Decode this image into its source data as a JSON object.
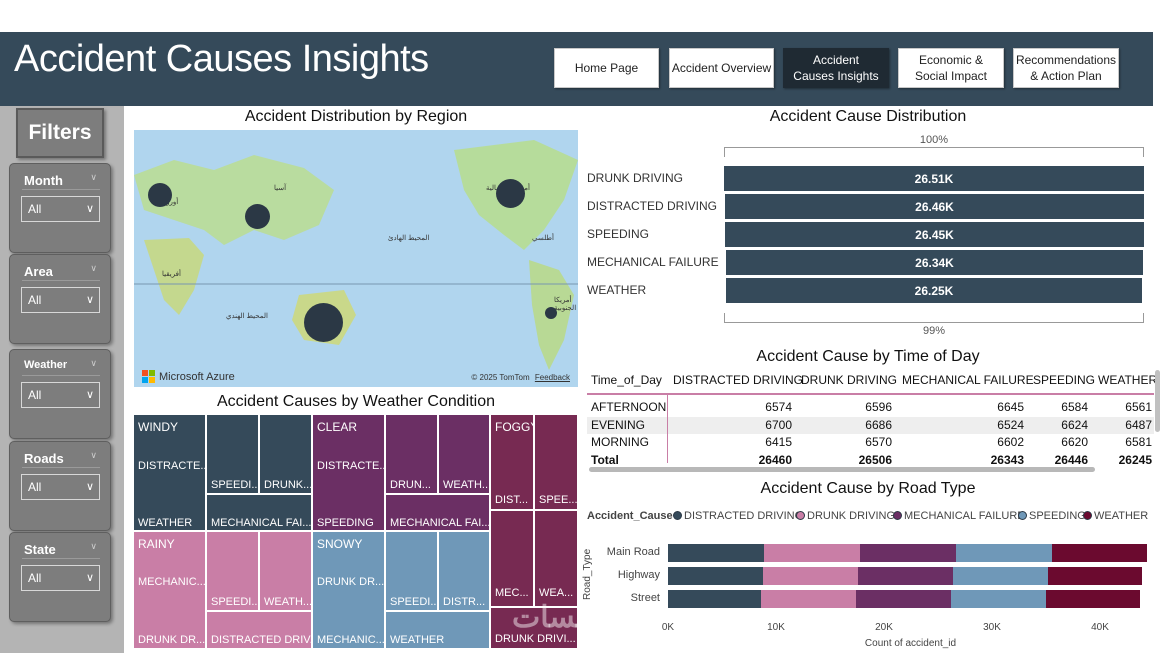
{
  "header": {
    "title": "Accident Causes Insights",
    "nav": [
      {
        "label": "Home Page",
        "active": false
      },
      {
        "label": "Accident Overview",
        "active": false
      },
      {
        "label": "Accident Causes Insights",
        "active": true
      },
      {
        "label": "Economic & Social Impact",
        "active": false
      },
      {
        "label": "Recommendations & Action Plan",
        "active": false
      }
    ]
  },
  "filters": {
    "title": "Filters",
    "slicers": [
      {
        "label": "Month",
        "value": "All"
      },
      {
        "label": "Area",
        "value": "All"
      },
      {
        "label": "Weather",
        "value": "All"
      },
      {
        "label": "Roads",
        "value": "All"
      },
      {
        "label": "State",
        "value": "All"
      }
    ]
  },
  "map": {
    "title": "Accident Distribution by Region",
    "attribution": "Microsoft Azure",
    "copyright": "© 2025 TomTom",
    "feedback": "Feedback",
    "labels": [
      "أوروبا",
      "آسيا",
      "أمريكا الشمالية",
      "المحيط الهادئ",
      "أفريقيا",
      "المحيط الهندي",
      "أمريكا الجنوبية",
      "أطلسي"
    ]
  },
  "cause_distribution": {
    "title": "Accident Cause Distribution",
    "top_pct": "100%",
    "bottom_pct": "99%",
    "bars": [
      {
        "label": "DRUNK DRIVING",
        "value": "26.51K",
        "num": 26.51
      },
      {
        "label": "DISTRACTED DRIVING",
        "value": "26.46K",
        "num": 26.46
      },
      {
        "label": "SPEEDING",
        "value": "26.45K",
        "num": 26.45
      },
      {
        "label": "MECHANICAL FAILURE",
        "value": "26.34K",
        "num": 26.34
      },
      {
        "label": "WEATHER",
        "value": "26.25K",
        "num": 26.25
      }
    ]
  },
  "time_of_day": {
    "title": "Accident Cause by Time of Day",
    "columns": [
      "Time_of_Day",
      "DISTRACTED DRIVING",
      "DRUNK DRIVING",
      "MECHANICAL FAILURE",
      "SPEEDING",
      "WEATHER"
    ],
    "rows": [
      [
        "AFTERNOON",
        "6574",
        "6596",
        "6645",
        "6584",
        "6561"
      ],
      [
        "EVENING",
        "6700",
        "6686",
        "6524",
        "6624",
        "6487"
      ],
      [
        "MORNING",
        "6415",
        "6570",
        "6602",
        "6620",
        "6581"
      ]
    ],
    "total": [
      "Total",
      "26460",
      "26506",
      "26343",
      "26446",
      "26245"
    ]
  },
  "weather_treemap": {
    "title": "Accident Causes by Weather Condition",
    "groups": [
      {
        "name": "WINDY",
        "color": "#354a5a",
        "cells": [
          "DISTRACTE...",
          "SPEEDI...",
          "DRUNK...",
          "WEATHER",
          "MECHANICAL FAI..."
        ]
      },
      {
        "name": "CLEAR",
        "color": "#6b2f64",
        "cells": [
          "DISTRACTE...",
          "DRUN...",
          "WEATH...",
          "SPEEDING",
          "MECHANICAL FAI..."
        ]
      },
      {
        "name": "FOGGY",
        "color": "#772a52",
        "cells": [
          "DIST...",
          "SPEE...",
          "MEC...",
          "WEA...",
          "DRUNK DRIVI..."
        ]
      },
      {
        "name": "RAINY",
        "color": "#c97ea6",
        "cells": [
          "MECHANIC...",
          "SPEEDI...",
          "WEATH...",
          "DRUNK DR...",
          "DISTRACTED DRIV..."
        ]
      },
      {
        "name": "SNOWY",
        "color": "#6f98b8",
        "cells": [
          "DRUNK DR...",
          "SPEEDI...",
          "DISTR...",
          "MECHANIC...",
          "WEATHER"
        ]
      }
    ]
  },
  "road_type": {
    "title": "Accident Cause by Road Type",
    "legend_title": "Accident_Cause",
    "y_axis_title": "Road_Type",
    "x_axis_title": "Count of accident_id",
    "x_ticks": [
      "0K",
      "10K",
      "20K",
      "30K",
      "40K"
    ],
    "xlim": [
      0,
      45000
    ],
    "series": [
      {
        "name": "DISTRACTED DRIVING",
        "color": "#354a5a"
      },
      {
        "name": "DRUNK DRIVING",
        "color": "#c97ea6"
      },
      {
        "name": "MECHANICAL FAILURE",
        "color": "#6b2f64"
      },
      {
        "name": "SPEEDING",
        "color": "#6f98b8"
      },
      {
        "name": "WEATHER",
        "color": "#6b0a2f"
      }
    ],
    "rows": [
      {
        "label": "Main Road",
        "values": [
          8900,
          8900,
          8900,
          8900,
          8800
        ]
      },
      {
        "label": "Highway",
        "values": [
          8800,
          8800,
          8800,
          8800,
          8700
        ]
      },
      {
        "label": "Street",
        "values": [
          8600,
          8800,
          8800,
          8800,
          8700
        ]
      }
    ]
  },
  "watermark": "خمسات"
}
